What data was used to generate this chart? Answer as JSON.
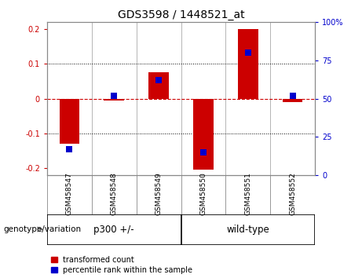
{
  "title": "GDS3598 / 1448521_at",
  "samples": [
    "GSM458547",
    "GSM458548",
    "GSM458549",
    "GSM458550",
    "GSM458551",
    "GSM458552"
  ],
  "red_values": [
    -0.13,
    -0.005,
    0.075,
    -0.205,
    0.2,
    -0.01
  ],
  "blue_values_pct": [
    17,
    52,
    62,
    15,
    80,
    52
  ],
  "ylim_left": [
    -0.22,
    0.22
  ],
  "ylim_right": [
    0,
    100
  ],
  "yticks_left": [
    -0.2,
    -0.1,
    0,
    0.1,
    0.2
  ],
  "yticks_right": [
    0,
    25,
    50,
    75,
    100
  ],
  "left_color": "#CC0000",
  "blue_color": "#0000CC",
  "zero_line_color": "#CC0000",
  "bar_width": 0.45,
  "group_label": "genotype/variation",
  "legend_red": "transformed count",
  "legend_blue": "percentile rank within the sample",
  "background_color": "#ffffff",
  "plot_bg": "#ffffff",
  "tick_label_bg": "#cccccc",
  "group_bg": "#90EE90"
}
